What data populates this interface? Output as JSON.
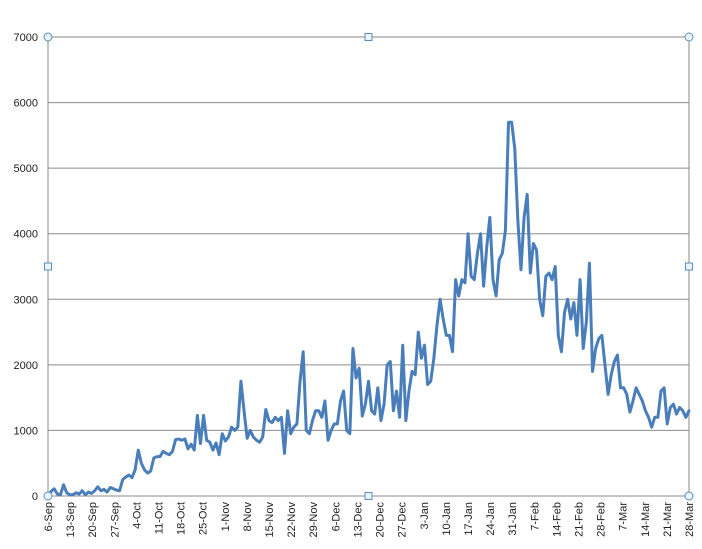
{
  "chart_data": {
    "type": "line",
    "title": "",
    "xlabel": "",
    "ylabel": "",
    "ylim": [
      0,
      7000
    ],
    "y_ticks": [
      0,
      1000,
      2000,
      3000,
      4000,
      5000,
      6000,
      7000
    ],
    "y_tick_labels": [
      "0",
      "1000",
      "2000",
      "3000",
      "4000",
      "5000",
      "6000",
      "7000"
    ],
    "x_tick_labels": [
      "6-Sep",
      "13-Sep",
      "20-Sep",
      "27-Sep",
      "4-Oct",
      "11-Oct",
      "18-Oct",
      "25-Oct",
      "1-Nov",
      "8-Nov",
      "15-Nov",
      "22-Nov",
      "29-Nov",
      "6-Dec",
      "13-Dec",
      "20-Dec",
      "27-Dec",
      "3-Jan",
      "10-Jan",
      "17-Jan",
      "24-Jan",
      "31-Jan",
      "7-Feb",
      "14-Feb",
      "21-Feb",
      "28-Feb",
      "7-Mar",
      "14-Mar",
      "21-Mar",
      "28-Mar"
    ],
    "grid": "horizontal",
    "legend": "none",
    "line_color": "#4a7ebb",
    "series": [
      {
        "values": [
          0,
          70,
          110,
          30,
          20,
          170,
          50,
          20,
          20,
          50,
          30,
          80,
          20,
          60,
          40,
          80,
          140,
          80,
          100,
          60,
          130,
          110,
          90,
          80,
          250,
          290,
          320,
          280,
          400,
          700,
          500,
          400,
          350,
          380,
          580,
          600,
          600,
          680,
          650,
          630,
          680,
          860,
          870,
          850,
          870,
          720,
          790,
          700,
          1230,
          800,
          1230,
          850,
          820,
          700,
          810,
          630,
          950,
          840,
          900,
          1050,
          1000,
          1050,
          1750,
          1300,
          880,
          1000,
          900,
          850,
          820,
          900,
          1320,
          1150,
          1120,
          1200,
          1150,
          1200,
          650,
          1300,
          950,
          1050,
          1100,
          1750,
          2200,
          1000,
          950,
          1150,
          1300,
          1300,
          1200,
          1450,
          850,
          1000,
          1100,
          1100,
          1450,
          1600,
          1000,
          950,
          2250,
          1800,
          1950,
          1220,
          1400,
          1750,
          1300,
          1250,
          1650,
          1150,
          1400,
          2000,
          2050,
          1300,
          1600,
          1200,
          2300,
          1150,
          1600,
          1900,
          1850,
          2500,
          2100,
          2300,
          1700,
          1750,
          2100,
          2600,
          3000,
          2700,
          2450,
          2450,
          2200,
          3300,
          3050,
          3300,
          3250,
          4000,
          3350,
          3300,
          3700,
          4000,
          3200,
          3800,
          4250,
          3300,
          3050,
          3600,
          3700,
          4050,
          5700,
          5700,
          5300,
          4200,
          3450,
          4250,
          4600,
          3400,
          3850,
          3750,
          3000,
          2750,
          3350,
          3400,
          3300,
          3500,
          2450,
          2200,
          2800,
          3000,
          2700,
          2950,
          2450,
          3300,
          2250,
          2650,
          3550,
          1900,
          2250,
          2400,
          2450,
          2000,
          1550,
          1850,
          2050,
          2150,
          1650,
          1650,
          1550,
          1280,
          1450,
          1650,
          1550,
          1450,
          1300,
          1200,
          1050,
          1200,
          1200,
          1600,
          1650,
          1100,
          1350,
          1400,
          1250,
          1350,
          1300,
          1200,
          1300
        ]
      }
    ]
  }
}
